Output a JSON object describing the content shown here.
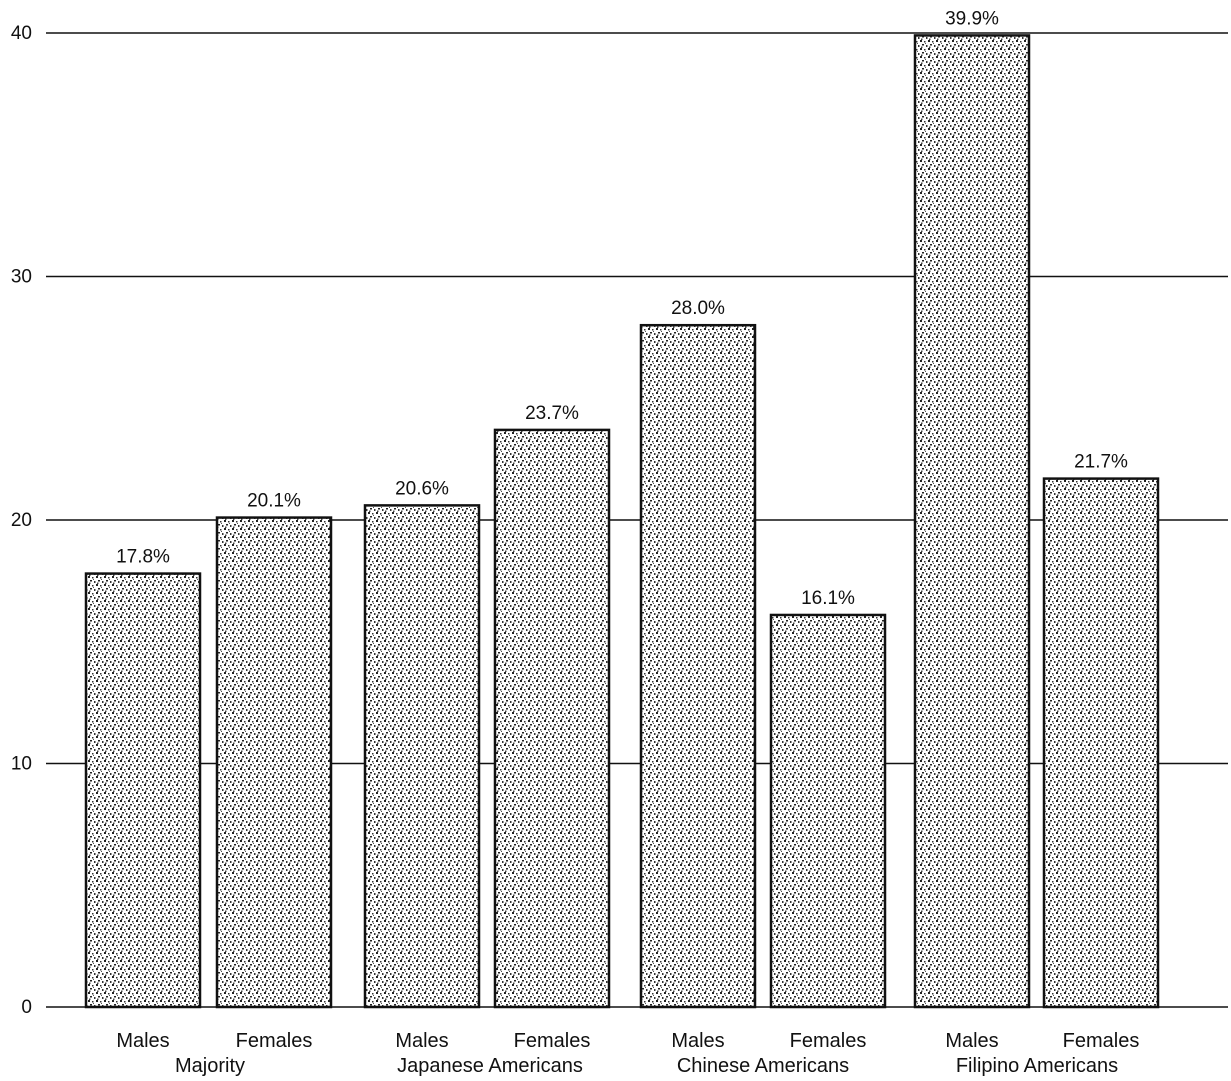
{
  "chart_data": {
    "type": "bar",
    "yticks": [
      0,
      10,
      20,
      30,
      40
    ],
    "ylim": [
      0,
      40
    ],
    "grid": true,
    "groups": [
      {
        "name": "Majority",
        "bars": [
          {
            "category": "Males",
            "value": 17.8,
            "label": "17.8%"
          },
          {
            "category": "Females",
            "value": 20.1,
            "label": "20.1%"
          }
        ]
      },
      {
        "name": "Japanese Americans",
        "bars": [
          {
            "category": "Males",
            "value": 20.6,
            "label": "20.6%"
          },
          {
            "category": "Females",
            "value": 23.7,
            "label": "23.7%"
          }
        ]
      },
      {
        "name": "Chinese Americans",
        "bars": [
          {
            "category": "Males",
            "value": 28.0,
            "label": "28.0%"
          },
          {
            "category": "Females",
            "value": 16.1,
            "label": "16.1%"
          }
        ]
      },
      {
        "name": "Filipino Americans",
        "bars": [
          {
            "category": "Males",
            "value": 39.9,
            "label": "39.9%"
          },
          {
            "category": "Females",
            "value": 21.7,
            "label": "21.7%"
          }
        ]
      }
    ],
    "colors": {
      "bar_outline": "#111111",
      "bar_fill": "#b9b9b9",
      "grid": "#111111"
    }
  }
}
